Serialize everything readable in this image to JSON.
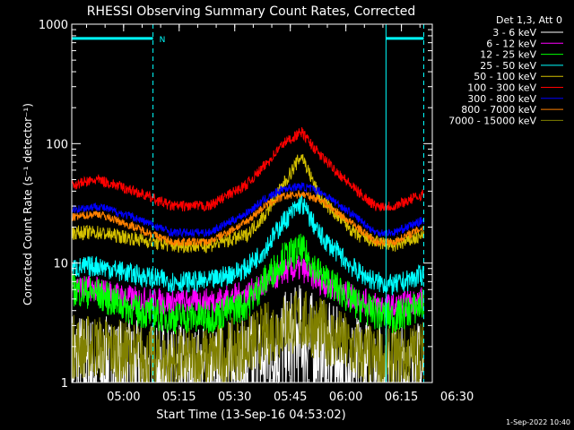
{
  "chart_data": {
    "type": "line",
    "title": "RHESSI Observing Summary Count Rates, Corrected",
    "xlabel": "Start Time (13-Sep-16 04:53:02)",
    "ylabel": "Corrected Count Rate (s⁻¹ detector⁻¹)",
    "yscale": "log",
    "ylim": [
      1,
      1000
    ],
    "xlim_minutes": [
      -7.03,
      90.3
    ],
    "x_origin": "04:53:02",
    "x_ticks": [
      {
        "minutes": 6.97,
        "label": "05:00"
      },
      {
        "minutes": 21.97,
        "label": "05:15"
      },
      {
        "minutes": 36.97,
        "label": "05:30"
      },
      {
        "minutes": 51.97,
        "label": "05:45"
      },
      {
        "minutes": 66.97,
        "label": "06:00"
      },
      {
        "minutes": 81.97,
        "label": "06:15"
      },
      {
        "minutes": 96.97,
        "label": "06:30"
      }
    ],
    "y_ticks": [
      {
        "value": 1,
        "label": "1"
      },
      {
        "value": 10,
        "label": "10"
      },
      {
        "value": 100,
        "label": "100"
      },
      {
        "value": 1000,
        "label": "1000"
      }
    ],
    "legend_title": "Det 1,3, Att 0",
    "legend_position": "right",
    "series": [
      {
        "name": "3 - 6 keV",
        "color": "#ffffff",
        "x": [
          -7,
          0,
          10,
          20,
          30,
          40,
          45,
          50,
          55,
          60,
          70,
          75,
          80,
          88
        ],
        "y": [
          1.5,
          1.3,
          1.2,
          1.1,
          1.1,
          1.3,
          1.5,
          2.0,
          2.5,
          1.8,
          1.3,
          1.2,
          1.1,
          1.2
        ]
      },
      {
        "name": "6 - 12 keV",
        "color": "#ff00ff",
        "x": [
          -7,
          0,
          10,
          20,
          30,
          40,
          45,
          50,
          55,
          60,
          70,
          75,
          80,
          88
        ],
        "y": [
          6.5,
          6.0,
          5.0,
          4.7,
          4.8,
          5.5,
          6.5,
          8.5,
          9.0,
          7.0,
          5.0,
          4.5,
          4.3,
          5.0
        ]
      },
      {
        "name": "12 - 25 keV",
        "color": "#00ff00",
        "x": [
          -7,
          0,
          10,
          20,
          30,
          40,
          45,
          50,
          55,
          60,
          70,
          75,
          80,
          88
        ],
        "y": [
          6.0,
          5.5,
          4.0,
          3.5,
          3.5,
          4.5,
          7.0,
          11,
          13,
          8.0,
          4.5,
          3.8,
          3.5,
          4.5
        ]
      },
      {
        "name": "25 - 50 keV",
        "color": "#00ffff",
        "x": [
          -7,
          0,
          10,
          20,
          30,
          40,
          45,
          50,
          55,
          60,
          70,
          75,
          80,
          88
        ],
        "y": [
          9.0,
          9.5,
          8.0,
          7.0,
          7.0,
          9.0,
          13,
          22,
          32,
          17,
          8.5,
          7.0,
          6.5,
          8.0
        ]
      },
      {
        "name": "50 - 100 keV",
        "color": "#d4c000",
        "x": [
          -7,
          0,
          10,
          20,
          30,
          40,
          45,
          50,
          55,
          60,
          70,
          75,
          80,
          88
        ],
        "y": [
          18,
          18,
          16,
          14,
          14,
          17,
          25,
          45,
          80,
          35,
          17,
          15,
          14,
          17
        ]
      },
      {
        "name": "100 - 300 keV",
        "color": "#ff0000",
        "x": [
          -7,
          0,
          10,
          20,
          30,
          40,
          45,
          50,
          55,
          60,
          70,
          75,
          80,
          88
        ],
        "y": [
          45,
          50,
          40,
          30,
          30,
          45,
          65,
          100,
          125,
          80,
          40,
          30,
          30,
          38
        ]
      },
      {
        "name": "300 - 800 keV",
        "color": "#0000ff",
        "x": [
          -7,
          0,
          10,
          20,
          30,
          40,
          45,
          50,
          55,
          60,
          70,
          75,
          80,
          88
        ],
        "y": [
          28,
          30,
          24,
          18,
          18,
          26,
          34,
          42,
          44,
          40,
          24,
          18,
          18,
          23
        ]
      },
      {
        "name": "800 - 7000 keV",
        "color": "#ff8000",
        "x": [
          -7,
          0,
          10,
          20,
          30,
          40,
          45,
          50,
          55,
          60,
          70,
          75,
          80,
          88
        ],
        "y": [
          24,
          26,
          20,
          15,
          15,
          22,
          30,
          36,
          38,
          34,
          20,
          15,
          15,
          20
        ]
      },
      {
        "name": "7000 - 15000 keV",
        "color": "#808000",
        "x": [
          -7,
          0,
          10,
          20,
          30,
          40,
          45,
          50,
          55,
          60,
          70,
          75,
          80,
          88
        ],
        "y": [
          2.0,
          2.0,
          1.7,
          1.5,
          1.6,
          2.0,
          2.5,
          3.0,
          3.3,
          2.8,
          1.8,
          1.6,
          1.6,
          1.8
        ]
      }
    ],
    "annotations": {
      "night_marker": "N",
      "night_start_minutes": 14.9,
      "day_start_minutes": 77.8,
      "day_end_minutes": 88.0,
      "night_color": "#00ffff"
    },
    "footer_timestamp": "1-Sep-2022 10:40"
  }
}
